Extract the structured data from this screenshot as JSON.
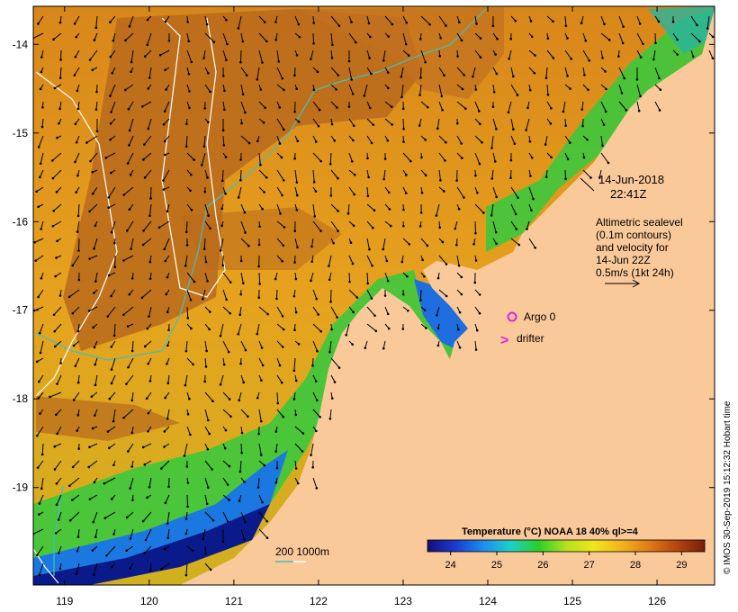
{
  "map": {
    "x_ticks": [
      {
        "lon": 119,
        "label": "119"
      },
      {
        "lon": 120,
        "label": "120"
      },
      {
        "lon": 121,
        "label": "121"
      },
      {
        "lon": 122,
        "label": "122"
      },
      {
        "lon": 123,
        "label": "123"
      },
      {
        "lon": 124,
        "label": "124"
      },
      {
        "lon": 125,
        "label": "125"
      },
      {
        "lon": 126,
        "label": "126"
      }
    ],
    "y_ticks": [
      {
        "lat": -14,
        "label": "-14"
      },
      {
        "lat": -15,
        "label": "-15"
      },
      {
        "lat": -16,
        "label": "-16"
      },
      {
        "lat": -17,
        "label": "-17"
      },
      {
        "lat": -18,
        "label": "-18"
      },
      {
        "lat": -19,
        "label": "-19"
      }
    ],
    "lon_range": [
      118.63,
      126.68
    ],
    "lat_range": [
      -20.1,
      -13.57
    ]
  },
  "annotations": {
    "date_line1": "14-Jun-2018",
    "date_line2": "22:41Z",
    "alt_line1": "Altimetric sealevel",
    "alt_line2": "(0.1m contours)",
    "alt_line3": "and velocity for",
    "alt_line4": "14-Jun 22Z",
    "alt_line5": "0.5m/s (1kt 24h)",
    "argo_label": "Argo 0",
    "drifter_label": "drifter",
    "drifter_symbol": ">",
    "depth_label": "200  1000m"
  },
  "colorbar": {
    "title": "Temperature (°C) NOAA 18 40% ql>=4",
    "ticks": [
      {
        "value": 24,
        "label": "24"
      },
      {
        "value": 25,
        "label": "25"
      },
      {
        "value": 26,
        "label": "26"
      },
      {
        "value": 27,
        "label": "27"
      },
      {
        "value": 28,
        "label": "28"
      },
      {
        "value": 29,
        "label": "29"
      }
    ],
    "range": [
      23.5,
      29.5
    ],
    "colors": [
      "#10107a",
      "#1a3ad0",
      "#1e8cf0",
      "#1ed0c8",
      "#28d028",
      "#b4e01e",
      "#f0e61e",
      "#f0b41e",
      "#e07a14",
      "#b44610",
      "#7a1e0a"
    ]
  },
  "credit": "© IMOS 30-Sep-2019 15:12:32 Hobart time",
  "colors": {
    "land": "#fac99a",
    "deep_blue": "#0b1a8a",
    "warm_orange": "#e8a41c",
    "warm_brown": "#b5611a",
    "argo": "#e020e0",
    "drifter": "#e020e0",
    "isobath_200": "#40c0c0",
    "isobath_1000": "#ffffff"
  }
}
